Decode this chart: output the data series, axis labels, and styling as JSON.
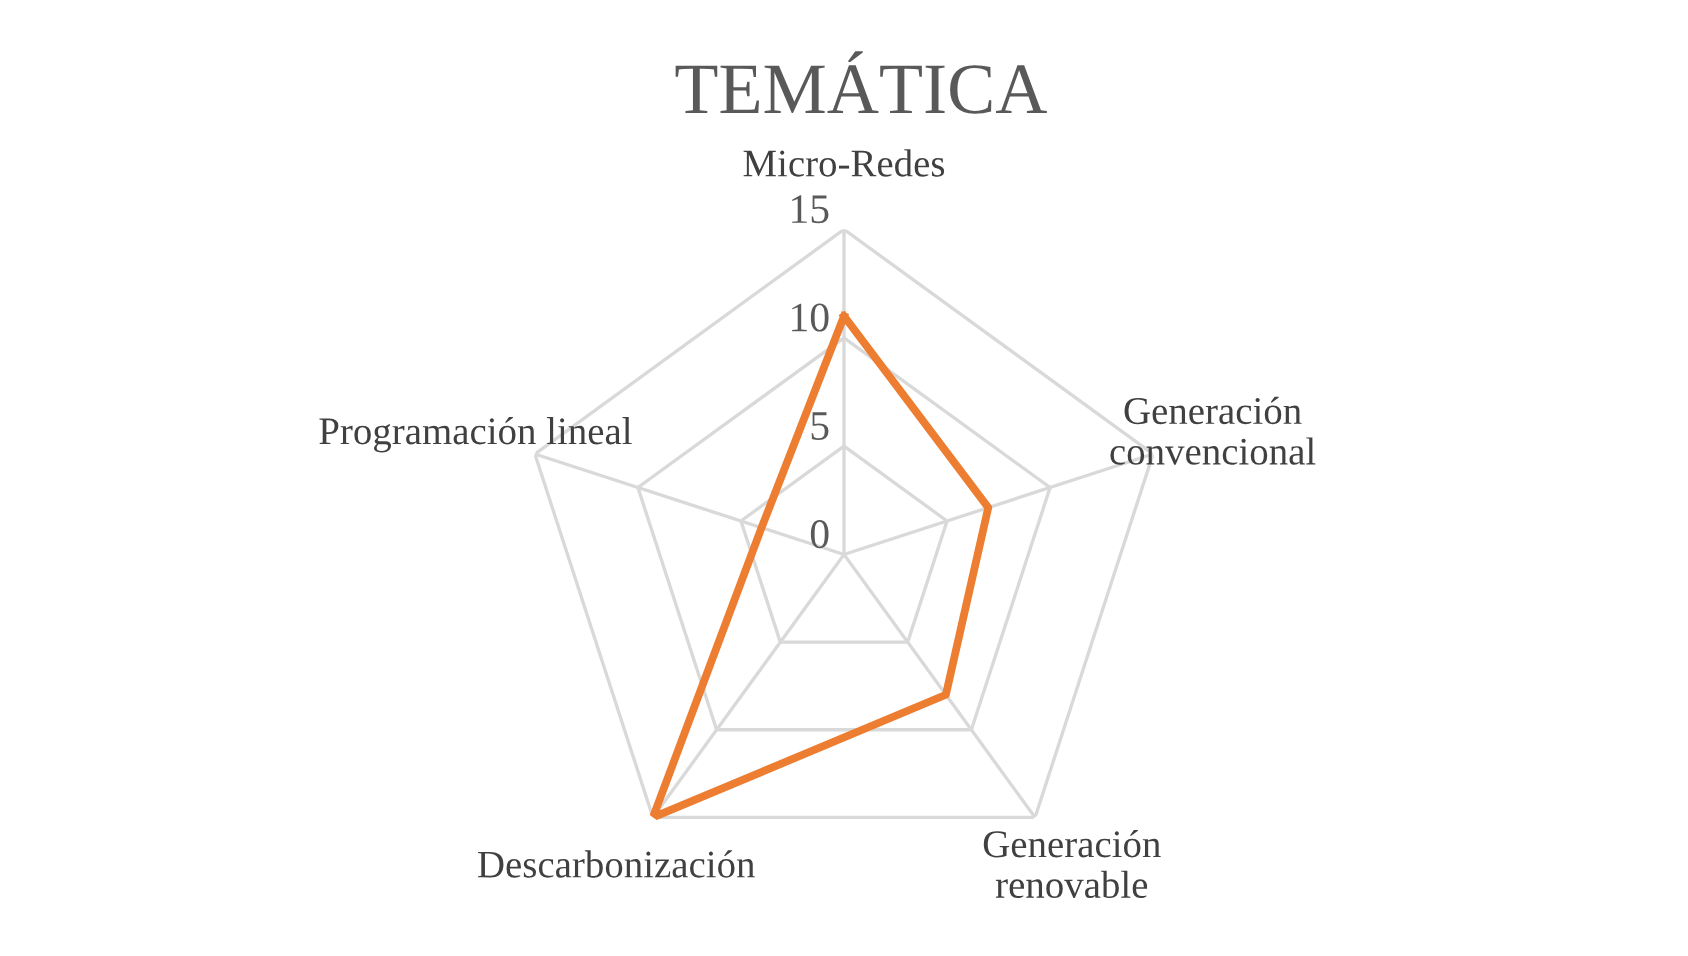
{
  "chart_data": {
    "type": "radar",
    "title": "TEMÁTICA",
    "categories": [
      "Micro-Redes",
      "Generación\nconvencional",
      "Generación\nrenovable",
      "Descarbonización",
      "Programación lineal"
    ],
    "series": [
      {
        "color": "#ed7d31",
        "values": [
          11,
          7,
          8,
          15,
          4
        ]
      }
    ],
    "ylim": [
      0,
      15
    ],
    "yticks": [
      0,
      5,
      10,
      15
    ],
    "grid": true,
    "legend": false,
    "marker": "none",
    "line_style": "solid"
  }
}
